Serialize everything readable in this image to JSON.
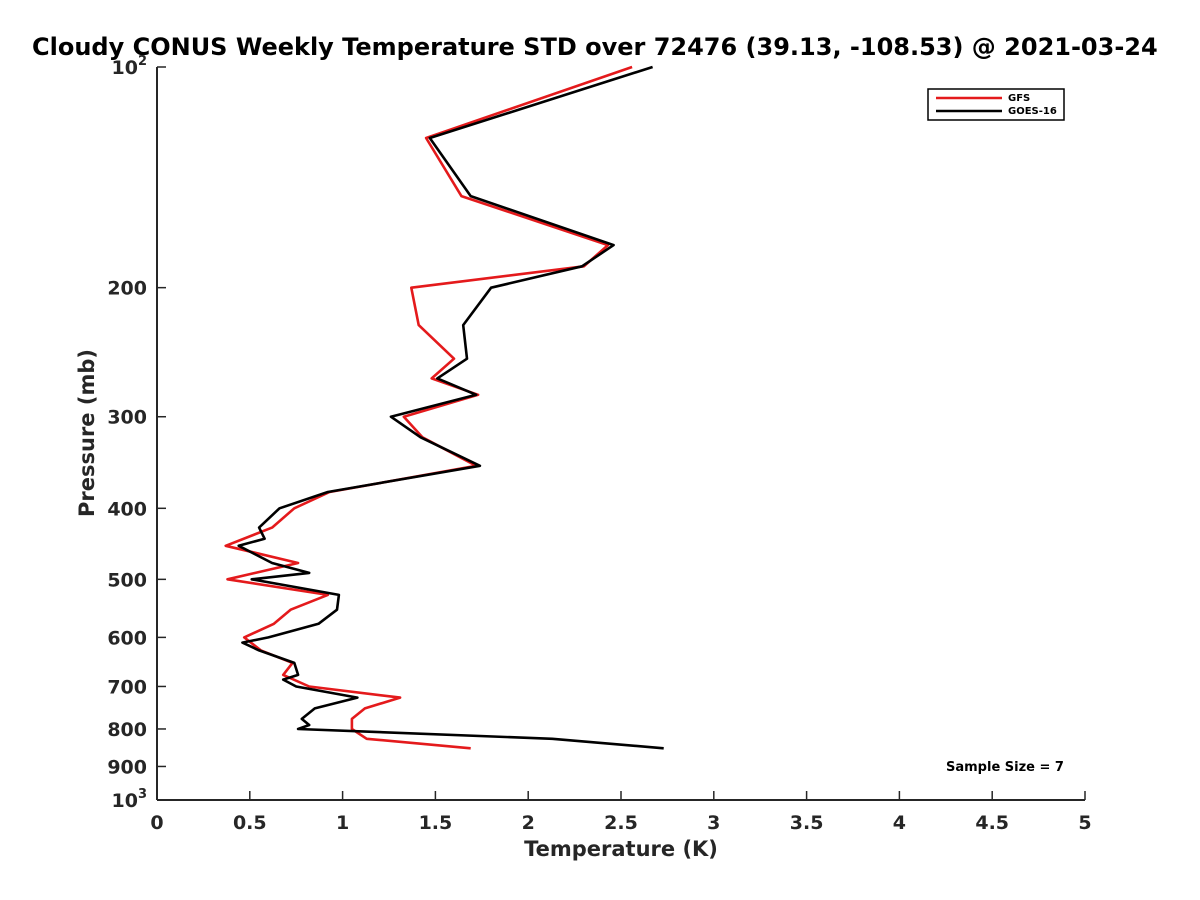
{
  "chart_data": {
    "type": "line",
    "title": "Cloudy CONUS Weekly Temperature STD over 72476 (39.13, -108.53) @ 2021-03-24",
    "xlabel": "Temperature (K)",
    "ylabel": "Pressure (mb)",
    "xlim": [
      0,
      5
    ],
    "ylim": [
      100,
      1000
    ],
    "y_scale": "log",
    "y_reversed": true,
    "x_ticks": [
      {
        "value": 0,
        "label": "0"
      },
      {
        "value": 0.5,
        "label": "0.5"
      },
      {
        "value": 1,
        "label": "1"
      },
      {
        "value": 1.5,
        "label": "1.5"
      },
      {
        "value": 2,
        "label": "2"
      },
      {
        "value": 2.5,
        "label": "2.5"
      },
      {
        "value": 3,
        "label": "3"
      },
      {
        "value": 3.5,
        "label": "3.5"
      },
      {
        "value": 4,
        "label": "4"
      },
      {
        "value": 4.5,
        "label": "4.5"
      },
      {
        "value": 5,
        "label": "5"
      }
    ],
    "y_ticks": [
      {
        "value": 100,
        "base": "10",
        "exp": "2"
      },
      {
        "value": 200,
        "label": "200"
      },
      {
        "value": 300,
        "label": "300"
      },
      {
        "value": 400,
        "label": "400"
      },
      {
        "value": 500,
        "label": "500"
      },
      {
        "value": 600,
        "label": "600"
      },
      {
        "value": 700,
        "label": "700"
      },
      {
        "value": 800,
        "label": "800"
      },
      {
        "value": 900,
        "label": "900"
      },
      {
        "value": 1000,
        "base": "10",
        "exp": "3"
      }
    ],
    "grid": false,
    "legend_position": "top-right",
    "annotation": "Sample Size = 7",
    "series": [
      {
        "name": "GFS",
        "color": "#e41a1c",
        "points": [
          [
            2.56,
            100
          ],
          [
            1.45,
            125
          ],
          [
            1.64,
            150
          ],
          [
            2.43,
            175
          ],
          [
            2.3,
            187
          ],
          [
            1.37,
            200
          ],
          [
            1.41,
            225
          ],
          [
            1.6,
            250
          ],
          [
            1.48,
            266
          ],
          [
            1.73,
            280
          ],
          [
            1.33,
            300
          ],
          [
            1.43,
            320
          ],
          [
            1.72,
            350
          ],
          [
            0.93,
            380
          ],
          [
            0.74,
            400
          ],
          [
            0.62,
            425
          ],
          [
            0.37,
            450
          ],
          [
            0.76,
            475
          ],
          [
            0.38,
            500
          ],
          [
            0.92,
            525
          ],
          [
            0.72,
            550
          ],
          [
            0.63,
            575
          ],
          [
            0.47,
            600
          ],
          [
            0.56,
            625
          ],
          [
            0.73,
            650
          ],
          [
            0.68,
            675
          ],
          [
            0.82,
            700
          ],
          [
            1.31,
            725
          ],
          [
            1.12,
            750
          ],
          [
            1.05,
            775
          ],
          [
            1.05,
            800
          ],
          [
            1.13,
            825
          ],
          [
            1.69,
            850
          ]
        ]
      },
      {
        "name": "GOES-16",
        "color": "#000000",
        "points": [
          [
            2.67,
            100
          ],
          [
            1.47,
            125
          ],
          [
            1.69,
            150
          ],
          [
            2.46,
            175
          ],
          [
            2.29,
            187
          ],
          [
            1.8,
            200
          ],
          [
            1.65,
            225
          ],
          [
            1.67,
            250
          ],
          [
            1.51,
            266
          ],
          [
            1.72,
            280
          ],
          [
            1.26,
            300
          ],
          [
            1.42,
            320
          ],
          [
            1.74,
            350
          ],
          [
            0.92,
            380
          ],
          [
            0.66,
            400
          ],
          [
            0.55,
            425
          ],
          [
            0.58,
            440
          ],
          [
            0.44,
            450
          ],
          [
            0.62,
            475
          ],
          [
            0.82,
            490
          ],
          [
            0.51,
            500
          ],
          [
            0.98,
            525
          ],
          [
            0.97,
            550
          ],
          [
            0.87,
            575
          ],
          [
            0.6,
            600
          ],
          [
            0.46,
            610
          ],
          [
            0.55,
            625
          ],
          [
            0.74,
            650
          ],
          [
            0.76,
            675
          ],
          [
            0.68,
            685
          ],
          [
            0.75,
            700
          ],
          [
            1.08,
            725
          ],
          [
            0.85,
            750
          ],
          [
            0.78,
            775
          ],
          [
            0.82,
            790
          ],
          [
            0.76,
            800
          ],
          [
            2.13,
            825
          ],
          [
            2.73,
            850
          ]
        ]
      }
    ]
  }
}
